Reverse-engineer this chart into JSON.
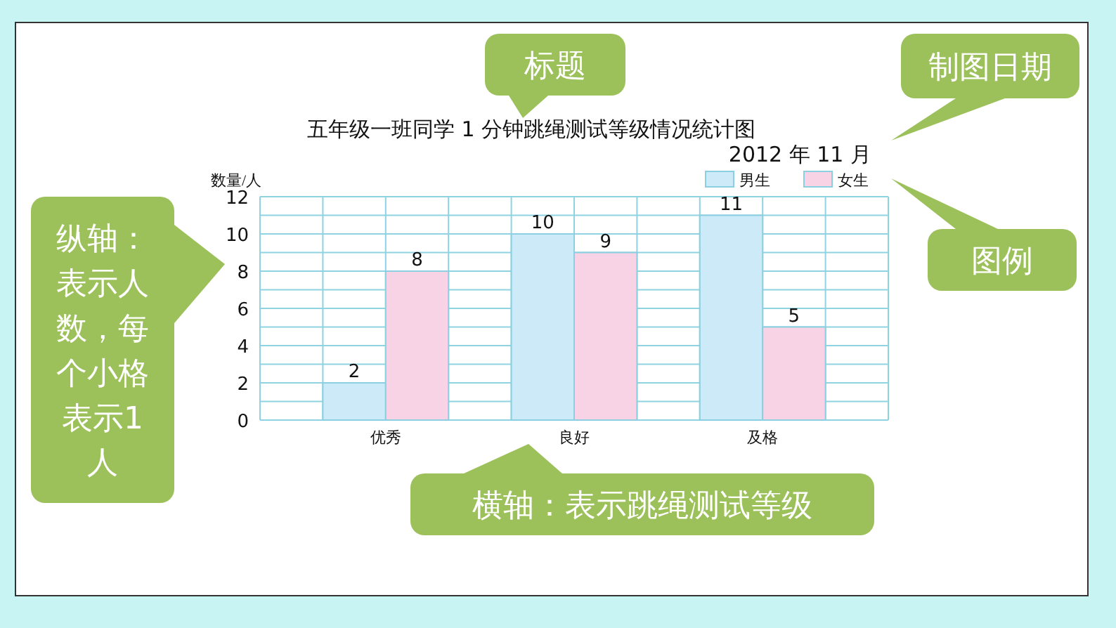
{
  "chart_data": {
    "type": "bar",
    "title": "五年级一班同学 1 分钟跳绳测试等级情况统计图",
    "subtitle": "2012 年 11 月",
    "ylabel": "数量/人",
    "categories": [
      "优秀",
      "良好",
      "及格"
    ],
    "series": [
      {
        "name": "男生",
        "color": "#cdeaf8",
        "values": [
          2,
          10,
          11
        ]
      },
      {
        "name": "女生",
        "color": "#f8d3e6",
        "values": [
          8,
          9,
          5
        ]
      }
    ],
    "ylim": [
      0,
      12
    ],
    "yticks": [
      0,
      2,
      4,
      6,
      8,
      10,
      12
    ],
    "grid": true,
    "legend": "top right",
    "data_labels": true,
    "annotations": [
      "标题",
      "制图日期",
      "图例",
      "纵轴：表示人数，每个小格表示1人",
      "横轴：表示跳绳测试等级"
    ]
  }
}
